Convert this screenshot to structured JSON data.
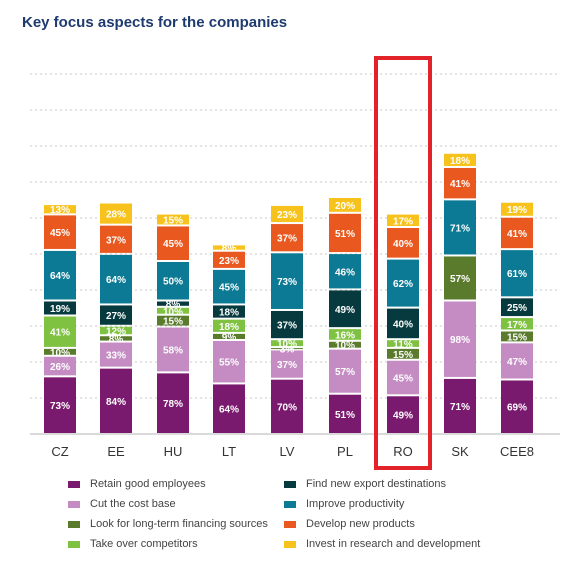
{
  "chart_data": {
    "type": "bar",
    "stacked": true,
    "title": "Key focus aspects for the companies",
    "categories": [
      "CZ",
      "EE",
      "HU",
      "LT",
      "LV",
      "PL",
      "RO",
      "SK",
      "CEE8"
    ],
    "highlight_category": "RO",
    "highlight_color": "#e2232a",
    "grid": true,
    "legend_position": "bottom",
    "series": [
      {
        "name": "Retain good employees",
        "color": "#7a1a6e",
        "values": [
          73,
          84,
          78,
          64,
          70,
          51,
          49,
          71,
          69
        ]
      },
      {
        "name": "Cut the cost base",
        "color": "#c48cc3",
        "values": [
          26,
          33,
          58,
          55,
          37,
          57,
          45,
          98,
          47
        ]
      },
      {
        "name": "Look for long-term financing sources",
        "color": "#5a7a2c",
        "values": [
          10,
          8,
          15,
          9,
          3,
          10,
          15,
          57,
          15
        ]
      },
      {
        "name": "Take over competitors",
        "color": "#7fc241",
        "values": [
          41,
          12,
          10,
          18,
          10,
          16,
          11,
          null,
          17
        ]
      },
      {
        "name": "Find new export destinations",
        "color": "#073a3e",
        "values": [
          19,
          27,
          8,
          18,
          37,
          49,
          40,
          null,
          25
        ]
      },
      {
        "name": "Improve productivity",
        "color": "#0c7a94",
        "values": [
          64,
          64,
          50,
          45,
          73,
          46,
          62,
          71,
          61
        ]
      },
      {
        "name": "Develop new products",
        "color": "#e8581f",
        "values": [
          45,
          37,
          45,
          23,
          37,
          51,
          40,
          41,
          41
        ]
      },
      {
        "name": "Invest in research and development",
        "color": "#f7c21b",
        "values": [
          13,
          28,
          15,
          8,
          23,
          20,
          17,
          18,
          19
        ]
      }
    ]
  },
  "legend_order": [
    0,
    4,
    1,
    5,
    2,
    6,
    3,
    7
  ]
}
